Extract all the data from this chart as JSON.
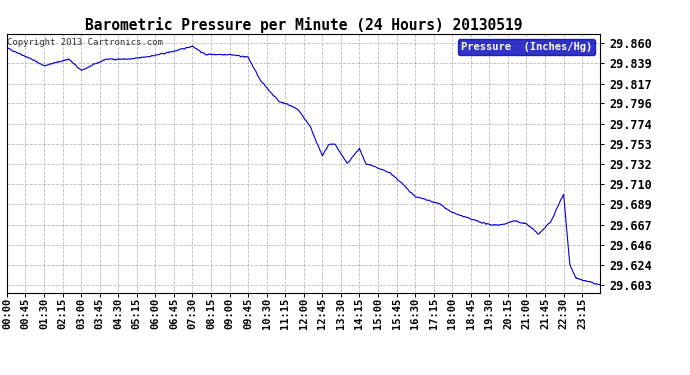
{
  "title": "Barometric Pressure per Minute (24 Hours) 20130519",
  "copyright": "Copyright 2013 Cartronics.com",
  "legend_label": "Pressure  (Inches/Hg)",
  "line_color": "#0000cc",
  "background_color": "#ffffff",
  "plot_bg_color": "#ffffff",
  "grid_color": "#aaaaaa",
  "yticks": [
    29.603,
    29.624,
    29.646,
    29.667,
    29.689,
    29.71,
    29.732,
    29.753,
    29.774,
    29.796,
    29.817,
    29.839,
    29.86
  ],
  "xtick_labels": [
    "00:00",
    "00:45",
    "01:30",
    "02:15",
    "03:00",
    "03:45",
    "04:30",
    "05:15",
    "06:00",
    "06:45",
    "07:30",
    "08:15",
    "09:00",
    "09:45",
    "10:30",
    "11:15",
    "12:00",
    "12:45",
    "13:30",
    "14:15",
    "15:00",
    "15:45",
    "16:30",
    "17:15",
    "18:00",
    "18:45",
    "19:30",
    "20:15",
    "21:00",
    "21:45",
    "22:30",
    "23:15"
  ],
  "ylim_min": 29.595,
  "ylim_max": 29.87,
  "num_points": 1440,
  "keypoints": [
    [
      0,
      29.855
    ],
    [
      60,
      29.843
    ],
    [
      90,
      29.836
    ],
    [
      150,
      29.843
    ],
    [
      180,
      29.831
    ],
    [
      240,
      29.843
    ],
    [
      300,
      29.843
    ],
    [
      360,
      29.847
    ],
    [
      420,
      29.853
    ],
    [
      450,
      29.857
    ],
    [
      480,
      29.848
    ],
    [
      540,
      29.848
    ],
    [
      570,
      29.846
    ],
    [
      585,
      29.845
    ],
    [
      615,
      29.82
    ],
    [
      660,
      29.798
    ],
    [
      675,
      29.796
    ],
    [
      705,
      29.79
    ],
    [
      735,
      29.772
    ],
    [
      765,
      29.74
    ],
    [
      780,
      29.752
    ],
    [
      795,
      29.753
    ],
    [
      825,
      29.732
    ],
    [
      855,
      29.748
    ],
    [
      870,
      29.732
    ],
    [
      930,
      29.722
    ],
    [
      960,
      29.71
    ],
    [
      990,
      29.697
    ],
    [
      1050,
      29.689
    ],
    [
      1080,
      29.68
    ],
    [
      1125,
      29.673
    ],
    [
      1170,
      29.667
    ],
    [
      1200,
      29.667
    ],
    [
      1230,
      29.671
    ],
    [
      1260,
      29.668
    ],
    [
      1290,
      29.657
    ],
    [
      1320,
      29.671
    ],
    [
      1350,
      29.7
    ],
    [
      1365,
      29.625
    ],
    [
      1380,
      29.61
    ],
    [
      1439,
      29.603
    ]
  ]
}
